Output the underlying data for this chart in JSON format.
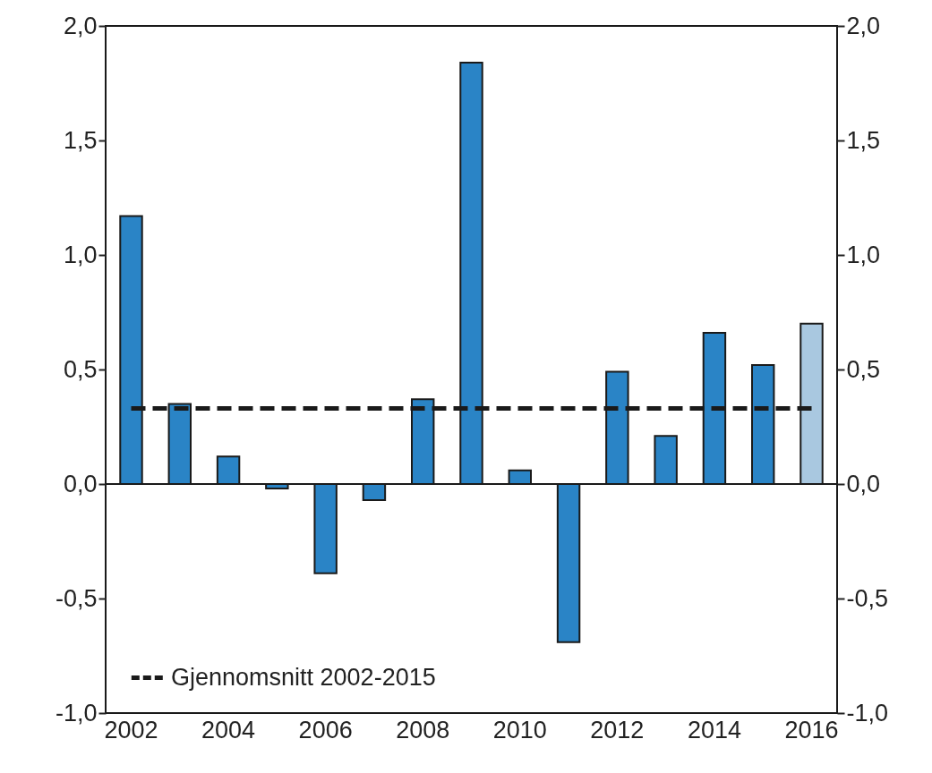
{
  "chart_data": {
    "type": "bar",
    "categories": [
      "2002",
      null,
      "2004",
      null,
      "2006",
      null,
      "2008",
      null,
      "2010",
      null,
      "2012",
      null,
      "2014",
      null,
      "2016"
    ],
    "values": [
      1.17,
      0.35,
      0.12,
      -0.02,
      -0.39,
      -0.07,
      0.37,
      1.84,
      0.06,
      -0.69,
      0.49,
      0.21,
      0.66,
      0.52,
      0.7
    ],
    "colors": [
      "#2a84c6",
      "#2a84c6",
      "#2a84c6",
      "#2a84c6",
      "#2a84c6",
      "#2a84c6",
      "#2a84c6",
      "#2a84c6",
      "#2a84c6",
      "#2a84c6",
      "#2a84c6",
      "#2a84c6",
      "#2a84c6",
      "#2a84c6",
      "#a9c8e0"
    ],
    "ylim": [
      -1,
      2
    ],
    "yticks": [
      {
        "value": -1,
        "label": "-1,0"
      },
      {
        "value": -0.5,
        "label": "-0,5"
      },
      {
        "value": 0,
        "label": "0,0"
      },
      {
        "value": 0.5,
        "label": "0,5"
      },
      {
        "value": 1,
        "label": "1,0"
      },
      {
        "value": 1.5,
        "label": "1,5"
      },
      {
        "value": 2,
        "label": "2,0"
      }
    ],
    "y2lim": [
      -1,
      2
    ],
    "y2ticks": [
      {
        "value": -1,
        "label": "-1,0"
      },
      {
        "value": -0.5,
        "label": "-0,5"
      },
      {
        "value": 0,
        "label": "0,0"
      },
      {
        "value": 0.5,
        "label": "0,5"
      },
      {
        "value": 1,
        "label": "1,0"
      },
      {
        "value": 1.5,
        "label": "1,5"
      },
      {
        "value": 2,
        "label": "2,0"
      }
    ],
    "ref_lines": [
      {
        "axis": "y",
        "value": 0.33,
        "label": "Gjennomsnitt 2002-2015",
        "color": "#1a1a1a",
        "line_style": "dashed"
      }
    ],
    "legend": "bottom left"
  }
}
